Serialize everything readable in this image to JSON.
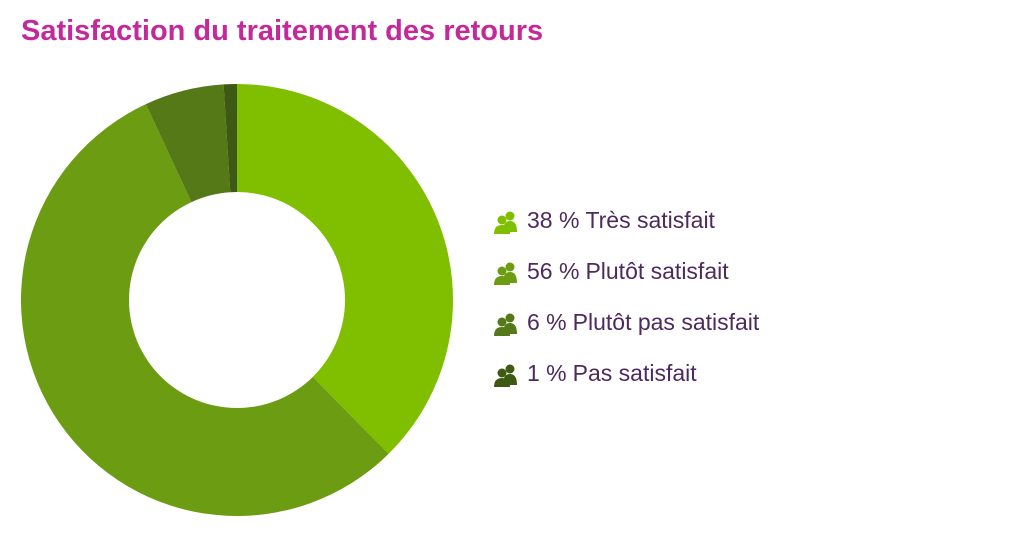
{
  "chart_data": {
    "type": "donut",
    "title": "Satisfaction du traitement des retours",
    "categories": [
      "Très satisfait",
      "Plutôt satisfait",
      "Plutôt pas satisfait",
      "Pas satisfait"
    ],
    "values": [
      38,
      56,
      6,
      1
    ],
    "value_labels": [
      "38 %",
      "56 %",
      "6 %",
      "1 %"
    ],
    "colors": [
      "#80bf00",
      "#6b9c12",
      "#557916",
      "#3e5a12"
    ]
  }
}
